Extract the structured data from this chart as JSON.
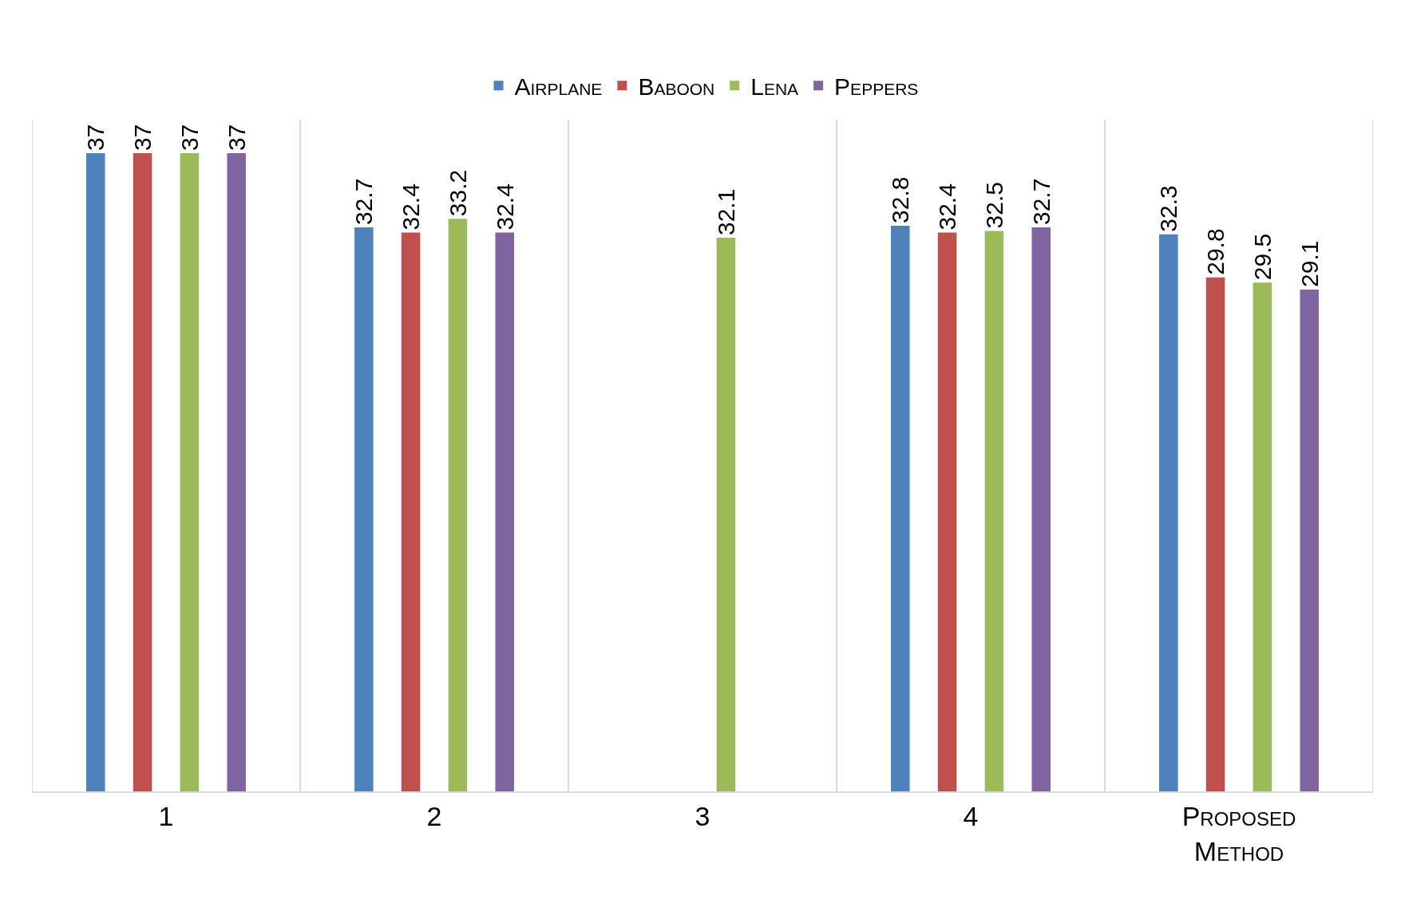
{
  "chart_data": {
    "type": "bar",
    "categories": [
      "1",
      "2",
      "3",
      "4",
      "Proposed Method"
    ],
    "series": [
      {
        "name": "Airplane",
        "color": "#4f81bd",
        "values": [
          37,
          32.7,
          null,
          32.8,
          32.3
        ]
      },
      {
        "name": "Baboon",
        "color": "#c0504d",
        "values": [
          37,
          32.4,
          null,
          32.4,
          29.8
        ]
      },
      {
        "name": "Lena",
        "color": "#9bbb59",
        "values": [
          37,
          33.2,
          32.1,
          32.5,
          29.5
        ]
      },
      {
        "name": "Peppers",
        "color": "#8064a2",
        "values": [
          37,
          32.4,
          null,
          32.7,
          29.1
        ]
      }
    ],
    "data_labels": true,
    "legend": "top",
    "grid": "x",
    "tick_labels": "x"
  }
}
